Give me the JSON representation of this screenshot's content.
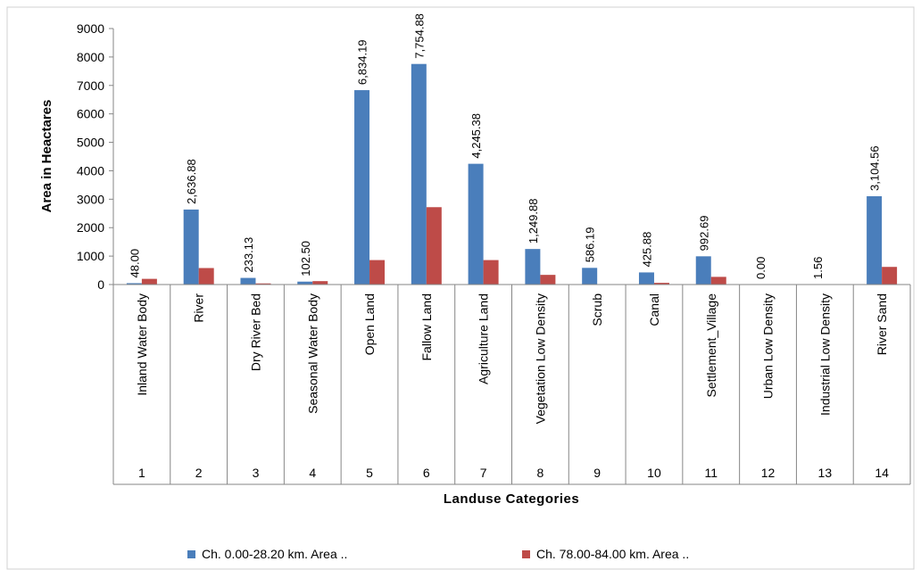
{
  "chart_data": {
    "type": "bar",
    "xlabel": "Landuse Categories",
    "ylabel": "Area in Heactares",
    "ylim": [
      0,
      9000
    ],
    "yticks": [
      "0",
      "1000",
      "2000",
      "3000",
      "4000",
      "5000",
      "6000",
      "7000",
      "8000",
      "9000"
    ],
    "grid": false,
    "legend_position": "bottom",
    "categories": [
      {
        "number": "1",
        "name": "Inland Water Body"
      },
      {
        "number": "2",
        "name": "River"
      },
      {
        "number": "3",
        "name": "Dry River Bed"
      },
      {
        "number": "4",
        "name": "Seasonal Water Body"
      },
      {
        "number": "5",
        "name": "Open Land"
      },
      {
        "number": "6",
        "name": "Fallow Land"
      },
      {
        "number": "7",
        "name": "Agriculture Land"
      },
      {
        "number": "8",
        "name": "Vegetation Low Density"
      },
      {
        "number": "9",
        "name": "Scrub"
      },
      {
        "number": "10",
        "name": "Canal"
      },
      {
        "number": "11",
        "name": "Settlement_Village"
      },
      {
        "number": "12",
        "name": "Urban Low Density"
      },
      {
        "number": "13",
        "name": "Industrial Low Density"
      },
      {
        "number": "14",
        "name": "River Sand"
      }
    ],
    "series": [
      {
        "name": "Ch. 0.00-28.20  km. Area ..",
        "color": "#4a7ebb",
        "values": [
          48.0,
          2636.88,
          233.13,
          102.5,
          6834.19,
          7754.88,
          4245.38,
          1249.88,
          586.19,
          425.88,
          992.69,
          0.0,
          1.56,
          3104.56
        ],
        "labels": [
          "48.00",
          "2,636.88",
          "233.13",
          "102.50",
          "6,834.19",
          "7,754.88",
          "4,245.38",
          "1,249.88",
          "586.19",
          "425.88",
          "992.69",
          "0.00",
          "1.56",
          "3,104.56"
        ]
      },
      {
        "name": "Ch. 78.00-84.00  km. Area ..",
        "color": "#be4b48",
        "values": [
          200,
          580,
          40,
          120,
          860,
          2720,
          860,
          340,
          0,
          60,
          270,
          0,
          0,
          620
        ]
      }
    ]
  }
}
